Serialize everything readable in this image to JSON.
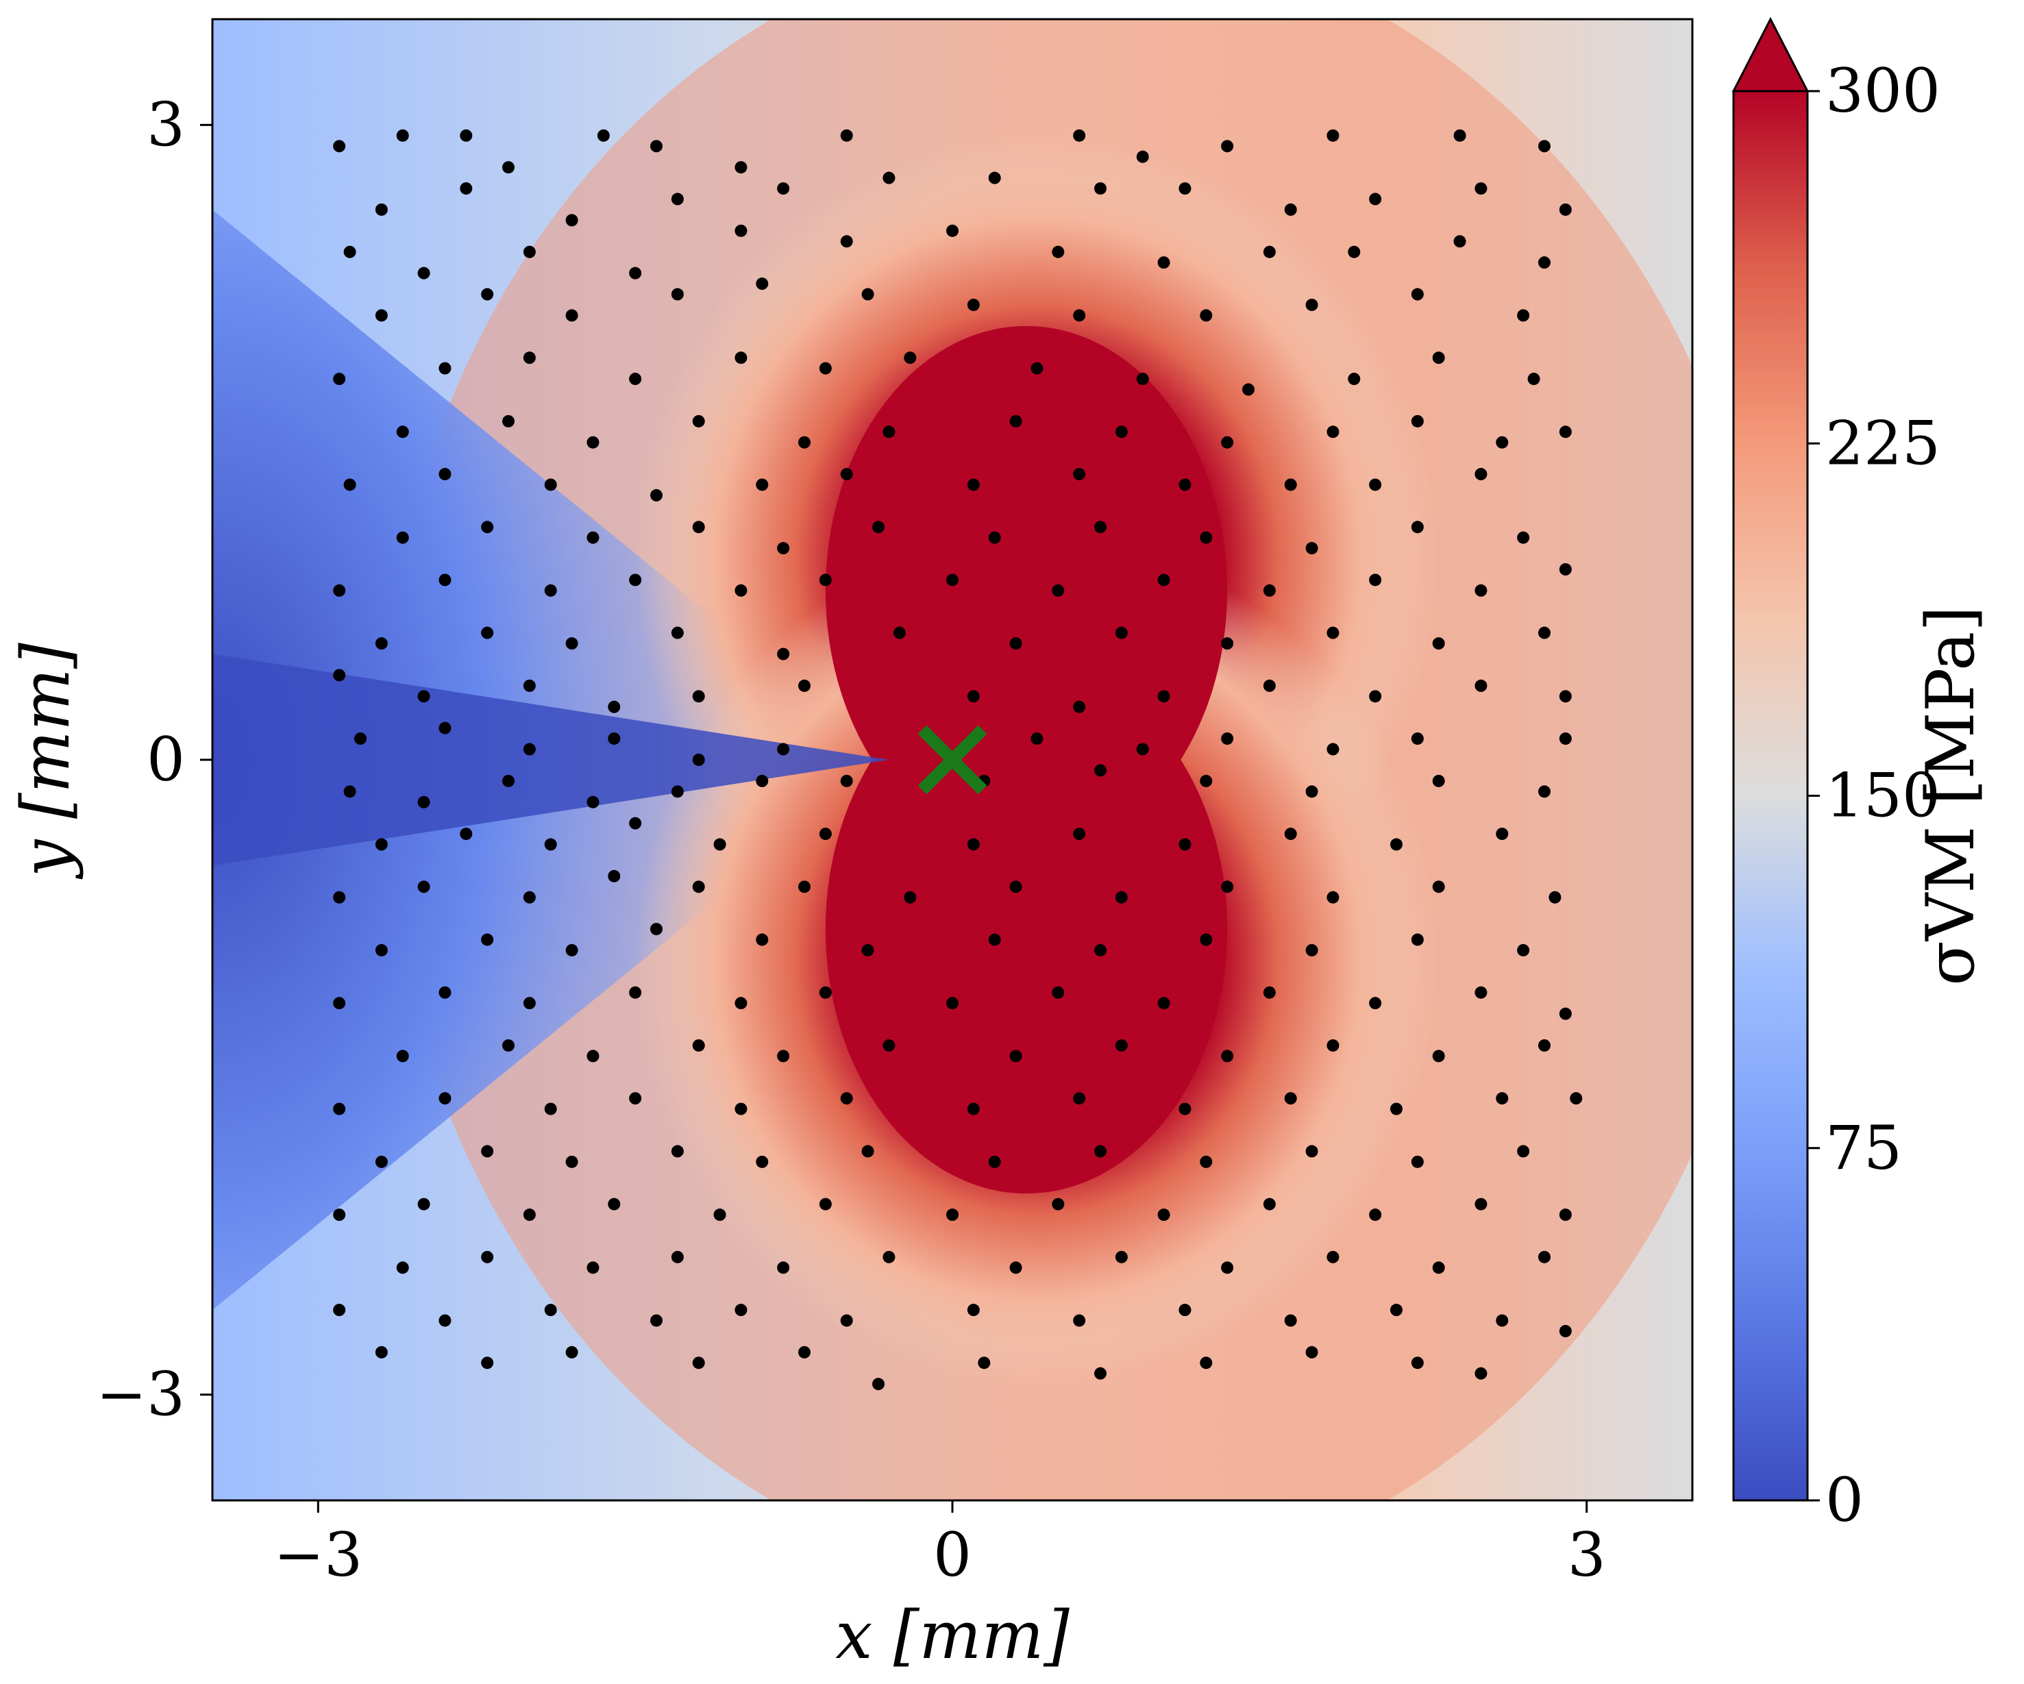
{
  "chart_data": {
    "type": "heatmap",
    "title": "",
    "xlabel": "x [mm]",
    "ylabel": "y [mm]",
    "xlim": [
      -3.5,
      3.5
    ],
    "ylim": [
      -3.5,
      3.5
    ],
    "x_ticks": [
      -3,
      0,
      3
    ],
    "y_ticks": [
      -3,
      0,
      3
    ],
    "x_tick_labels": [
      "−3",
      "0",
      "3"
    ],
    "y_tick_labels": [
      "−3",
      "0",
      "3"
    ],
    "grid": false,
    "colormap": "coolwarm",
    "colorbar": {
      "label": "σVM [MPa]",
      "range": [
        0,
        300
      ],
      "ticks": [
        0,
        75,
        150,
        225,
        300
      ],
      "tick_labels": [
        "0",
        "75",
        "150",
        "225",
        "300"
      ],
      "extend": "max"
    },
    "field_description": "von Mises stress field around a crack tip at (0,0); crack extends along negative x-axis (low stress, blue), high stress lobes (red) above and below tip",
    "crack_tip_marker": {
      "x": 0,
      "y": 0,
      "marker": "x",
      "color": "#1a7a1a"
    },
    "scatter_points_color": "#000000",
    "scatter_points": [
      [
        -2.9,
        2.9
      ],
      [
        -2.6,
        2.95
      ],
      [
        -2.3,
        2.95
      ],
      [
        -2.1,
        2.8
      ],
      [
        -1.65,
        2.95
      ],
      [
        -1.4,
        2.9
      ],
      [
        -1.0,
        2.8
      ],
      [
        -0.5,
        2.95
      ],
      [
        0.6,
        2.95
      ],
      [
        0.9,
        2.85
      ],
      [
        1.3,
        2.9
      ],
      [
        1.8,
        2.95
      ],
      [
        2.4,
        2.95
      ],
      [
        2.8,
        2.9
      ],
      [
        -2.7,
        2.6
      ],
      [
        -2.3,
        2.7
      ],
      [
        -1.8,
        2.55
      ],
      [
        -1.3,
        2.65
      ],
      [
        -0.8,
        2.7
      ],
      [
        -0.3,
        2.75
      ],
      [
        0.2,
        2.75
      ],
      [
        0.7,
        2.7
      ],
      [
        1.1,
        2.7
      ],
      [
        1.6,
        2.6
      ],
      [
        2.0,
        2.65
      ],
      [
        2.5,
        2.7
      ],
      [
        2.9,
        2.6
      ],
      [
        -2.85,
        2.4
      ],
      [
        -2.5,
        2.3
      ],
      [
        -2.0,
        2.4
      ],
      [
        -1.5,
        2.3
      ],
      [
        -1.0,
        2.5
      ],
      [
        -0.5,
        2.45
      ],
      [
        0.0,
        2.5
      ],
      [
        0.5,
        2.4
      ],
      [
        1.0,
        2.35
      ],
      [
        1.5,
        2.4
      ],
      [
        1.9,
        2.4
      ],
      [
        2.4,
        2.45
      ],
      [
        2.8,
        2.35
      ],
      [
        -2.7,
        2.1
      ],
      [
        -2.2,
        2.2
      ],
      [
        -1.8,
        2.1
      ],
      [
        -1.3,
        2.2
      ],
      [
        -0.9,
        2.25
      ],
      [
        -0.4,
        2.2
      ],
      [
        0.1,
        2.15
      ],
      [
        0.6,
        2.1
      ],
      [
        1.2,
        2.1
      ],
      [
        1.7,
        2.15
      ],
      [
        2.2,
        2.2
      ],
      [
        2.7,
        2.1
      ],
      [
        -2.9,
        1.8
      ],
      [
        -2.4,
        1.85
      ],
      [
        -2.0,
        1.9
      ],
      [
        -1.5,
        1.8
      ],
      [
        -1.0,
        1.9
      ],
      [
        -0.6,
        1.85
      ],
      [
        -0.2,
        1.9
      ],
      [
        0.4,
        1.85
      ],
      [
        0.9,
        1.8
      ],
      [
        1.4,
        1.75
      ],
      [
        1.9,
        1.8
      ],
      [
        2.3,
        1.9
      ],
      [
        2.75,
        1.8
      ],
      [
        -2.6,
        1.55
      ],
      [
        -2.1,
        1.6
      ],
      [
        -1.7,
        1.5
      ],
      [
        -1.2,
        1.6
      ],
      [
        -0.7,
        1.5
      ],
      [
        -0.3,
        1.55
      ],
      [
        0.3,
        1.6
      ],
      [
        0.8,
        1.55
      ],
      [
        1.3,
        1.5
      ],
      [
        1.8,
        1.55
      ],
      [
        2.2,
        1.6
      ],
      [
        2.6,
        1.5
      ],
      [
        2.9,
        1.55
      ],
      [
        -2.85,
        1.3
      ],
      [
        -2.4,
        1.35
      ],
      [
        -1.9,
        1.3
      ],
      [
        -1.4,
        1.25
      ],
      [
        -0.9,
        1.3
      ],
      [
        -0.5,
        1.35
      ],
      [
        0.1,
        1.3
      ],
      [
        0.6,
        1.35
      ],
      [
        1.1,
        1.3
      ],
      [
        1.6,
        1.3
      ],
      [
        2.0,
        1.3
      ],
      [
        2.5,
        1.35
      ],
      [
        -2.6,
        1.05
      ],
      [
        -2.2,
        1.1
      ],
      [
        -1.7,
        1.05
      ],
      [
        -1.2,
        1.1
      ],
      [
        -0.8,
        1.0
      ],
      [
        -0.35,
        1.1
      ],
      [
        0.2,
        1.05
      ],
      [
        0.7,
        1.1
      ],
      [
        1.2,
        1.05
      ],
      [
        1.7,
        1.0
      ],
      [
        2.2,
        1.1
      ],
      [
        2.7,
        1.05
      ],
      [
        -2.9,
        0.8
      ],
      [
        -2.4,
        0.85
      ],
      [
        -1.9,
        0.8
      ],
      [
        -1.5,
        0.85
      ],
      [
        -1.0,
        0.8
      ],
      [
        -0.6,
        0.85
      ],
      [
        0.0,
        0.85
      ],
      [
        0.5,
        0.8
      ],
      [
        1.0,
        0.85
      ],
      [
        1.5,
        0.8
      ],
      [
        2.0,
        0.85
      ],
      [
        2.5,
        0.8
      ],
      [
        2.9,
        0.9
      ],
      [
        -2.7,
        0.55
      ],
      [
        -2.2,
        0.6
      ],
      [
        -1.8,
        0.55
      ],
      [
        -1.3,
        0.6
      ],
      [
        -0.8,
        0.5
      ],
      [
        -0.25,
        0.6
      ],
      [
        0.3,
        0.55
      ],
      [
        0.8,
        0.6
      ],
      [
        1.3,
        0.55
      ],
      [
        1.8,
        0.6
      ],
      [
        2.3,
        0.55
      ],
      [
        2.8,
        0.6
      ],
      [
        -2.9,
        0.4
      ],
      [
        -2.5,
        0.3
      ],
      [
        -2.0,
        0.35
      ],
      [
        -1.6,
        0.25
      ],
      [
        -1.2,
        0.3
      ],
      [
        -0.7,
        0.35
      ],
      [
        0.1,
        0.3
      ],
      [
        0.6,
        0.25
      ],
      [
        1.0,
        0.3
      ],
      [
        1.5,
        0.35
      ],
      [
        2.0,
        0.3
      ],
      [
        2.5,
        0.35
      ],
      [
        2.9,
        0.3
      ],
      [
        -2.8,
        0.1
      ],
      [
        -2.4,
        0.15
      ],
      [
        -2.0,
        0.05
      ],
      [
        -1.6,
        0.1
      ],
      [
        -1.2,
        0.0
      ],
      [
        -0.8,
        0.05
      ],
      [
        0.4,
        0.1
      ],
      [
        0.9,
        0.05
      ],
      [
        1.3,
        0.1
      ],
      [
        1.8,
        0.05
      ],
      [
        2.2,
        0.1
      ],
      [
        2.9,
        0.1
      ],
      [
        -2.85,
        -0.15
      ],
      [
        -2.5,
        -0.2
      ],
      [
        -2.1,
        -0.1
      ],
      [
        -1.7,
        -0.2
      ],
      [
        -1.3,
        -0.15
      ],
      [
        -0.9,
        -0.1
      ],
      [
        -0.5,
        -0.1
      ],
      [
        0.15,
        -0.1
      ],
      [
        0.7,
        -0.05
      ],
      [
        1.2,
        -0.1
      ],
      [
        1.7,
        -0.15
      ],
      [
        2.3,
        -0.1
      ],
      [
        2.8,
        -0.15
      ],
      [
        -2.7,
        -0.4
      ],
      [
        -2.3,
        -0.35
      ],
      [
        -1.9,
        -0.4
      ],
      [
        -1.5,
        -0.3
      ],
      [
        -1.1,
        -0.4
      ],
      [
        -0.6,
        -0.35
      ],
      [
        0.1,
        -0.4
      ],
      [
        0.6,
        -0.35
      ],
      [
        1.1,
        -0.4
      ],
      [
        1.6,
        -0.35
      ],
      [
        2.1,
        -0.4
      ],
      [
        2.6,
        -0.35
      ],
      [
        -2.9,
        -0.65
      ],
      [
        -2.5,
        -0.6
      ],
      [
        -2.0,
        -0.65
      ],
      [
        -1.6,
        -0.55
      ],
      [
        -1.2,
        -0.6
      ],
      [
        -0.7,
        -0.6
      ],
      [
        -0.2,
        -0.65
      ],
      [
        0.3,
        -0.6
      ],
      [
        0.8,
        -0.65
      ],
      [
        1.3,
        -0.6
      ],
      [
        1.8,
        -0.65
      ],
      [
        2.3,
        -0.6
      ],
      [
        2.85,
        -0.65
      ],
      [
        -2.7,
        -0.9
      ],
      [
        -2.2,
        -0.85
      ],
      [
        -1.8,
        -0.9
      ],
      [
        -1.4,
        -0.8
      ],
      [
        -0.9,
        -0.85
      ],
      [
        -0.4,
        -0.9
      ],
      [
        0.2,
        -0.85
      ],
      [
        0.7,
        -0.9
      ],
      [
        1.2,
        -0.85
      ],
      [
        1.7,
        -0.9
      ],
      [
        2.2,
        -0.85
      ],
      [
        2.7,
        -0.9
      ],
      [
        -2.9,
        -1.15
      ],
      [
        -2.4,
        -1.1
      ],
      [
        -2.0,
        -1.15
      ],
      [
        -1.5,
        -1.1
      ],
      [
        -1.0,
        -1.15
      ],
      [
        -0.6,
        -1.1
      ],
      [
        0.0,
        -1.15
      ],
      [
        0.5,
        -1.1
      ],
      [
        1.0,
        -1.15
      ],
      [
        1.5,
        -1.1
      ],
      [
        2.0,
        -1.15
      ],
      [
        2.5,
        -1.1
      ],
      [
        2.9,
        -1.2
      ],
      [
        -2.6,
        -1.4
      ],
      [
        -2.1,
        -1.35
      ],
      [
        -1.7,
        -1.4
      ],
      [
        -1.2,
        -1.35
      ],
      [
        -0.8,
        -1.4
      ],
      [
        -0.3,
        -1.35
      ],
      [
        0.3,
        -1.4
      ],
      [
        0.8,
        -1.35
      ],
      [
        1.3,
        -1.4
      ],
      [
        1.8,
        -1.35
      ],
      [
        2.3,
        -1.4
      ],
      [
        2.8,
        -1.35
      ],
      [
        -2.9,
        -1.65
      ],
      [
        -2.4,
        -1.6
      ],
      [
        -1.9,
        -1.65
      ],
      [
        -1.5,
        -1.6
      ],
      [
        -1.0,
        -1.65
      ],
      [
        -0.5,
        -1.6
      ],
      [
        0.1,
        -1.65
      ],
      [
        0.6,
        -1.6
      ],
      [
        1.1,
        -1.65
      ],
      [
        1.6,
        -1.6
      ],
      [
        2.1,
        -1.65
      ],
      [
        2.6,
        -1.6
      ],
      [
        2.95,
        -1.6
      ],
      [
        -2.7,
        -1.9
      ],
      [
        -2.2,
        -1.85
      ],
      [
        -1.8,
        -1.9
      ],
      [
        -1.3,
        -1.85
      ],
      [
        -0.9,
        -1.9
      ],
      [
        -0.4,
        -1.85
      ],
      [
        0.2,
        -1.9
      ],
      [
        0.7,
        -1.85
      ],
      [
        1.2,
        -1.9
      ],
      [
        1.7,
        -1.85
      ],
      [
        2.2,
        -1.9
      ],
      [
        2.7,
        -1.85
      ],
      [
        -2.9,
        -2.15
      ],
      [
        -2.5,
        -2.1
      ],
      [
        -2.0,
        -2.15
      ],
      [
        -1.6,
        -2.1
      ],
      [
        -1.1,
        -2.15
      ],
      [
        -0.6,
        -2.1
      ],
      [
        0.0,
        -2.15
      ],
      [
        0.5,
        -2.1
      ],
      [
        1.0,
        -2.15
      ],
      [
        1.5,
        -2.1
      ],
      [
        2.0,
        -2.15
      ],
      [
        2.5,
        -2.1
      ],
      [
        2.9,
        -2.15
      ],
      [
        -2.6,
        -2.4
      ],
      [
        -2.2,
        -2.35
      ],
      [
        -1.7,
        -2.4
      ],
      [
        -1.3,
        -2.35
      ],
      [
        -0.8,
        -2.4
      ],
      [
        -0.3,
        -2.35
      ],
      [
        0.3,
        -2.4
      ],
      [
        0.8,
        -2.35
      ],
      [
        1.3,
        -2.4
      ],
      [
        1.8,
        -2.35
      ],
      [
        2.3,
        -2.4
      ],
      [
        2.8,
        -2.35
      ],
      [
        -2.9,
        -2.6
      ],
      [
        -2.4,
        -2.65
      ],
      [
        -1.9,
        -2.6
      ],
      [
        -1.4,
        -2.65
      ],
      [
        -1.0,
        -2.6
      ],
      [
        -0.5,
        -2.65
      ],
      [
        0.1,
        -2.6
      ],
      [
        0.6,
        -2.65
      ],
      [
        1.1,
        -2.6
      ],
      [
        1.6,
        -2.65
      ],
      [
        2.1,
        -2.6
      ],
      [
        2.6,
        -2.65
      ],
      [
        2.9,
        -2.7
      ],
      [
        -2.7,
        -2.8
      ],
      [
        -2.2,
        -2.85
      ],
      [
        -1.8,
        -2.8
      ],
      [
        -1.2,
        -2.85
      ],
      [
        -0.7,
        -2.8
      ],
      [
        -0.35,
        -2.95
      ],
      [
        0.15,
        -2.85
      ],
      [
        0.7,
        -2.9
      ],
      [
        1.2,
        -2.85
      ],
      [
        1.7,
        -2.8
      ],
      [
        2.2,
        -2.85
      ],
      [
        2.5,
        -2.9
      ]
    ]
  }
}
